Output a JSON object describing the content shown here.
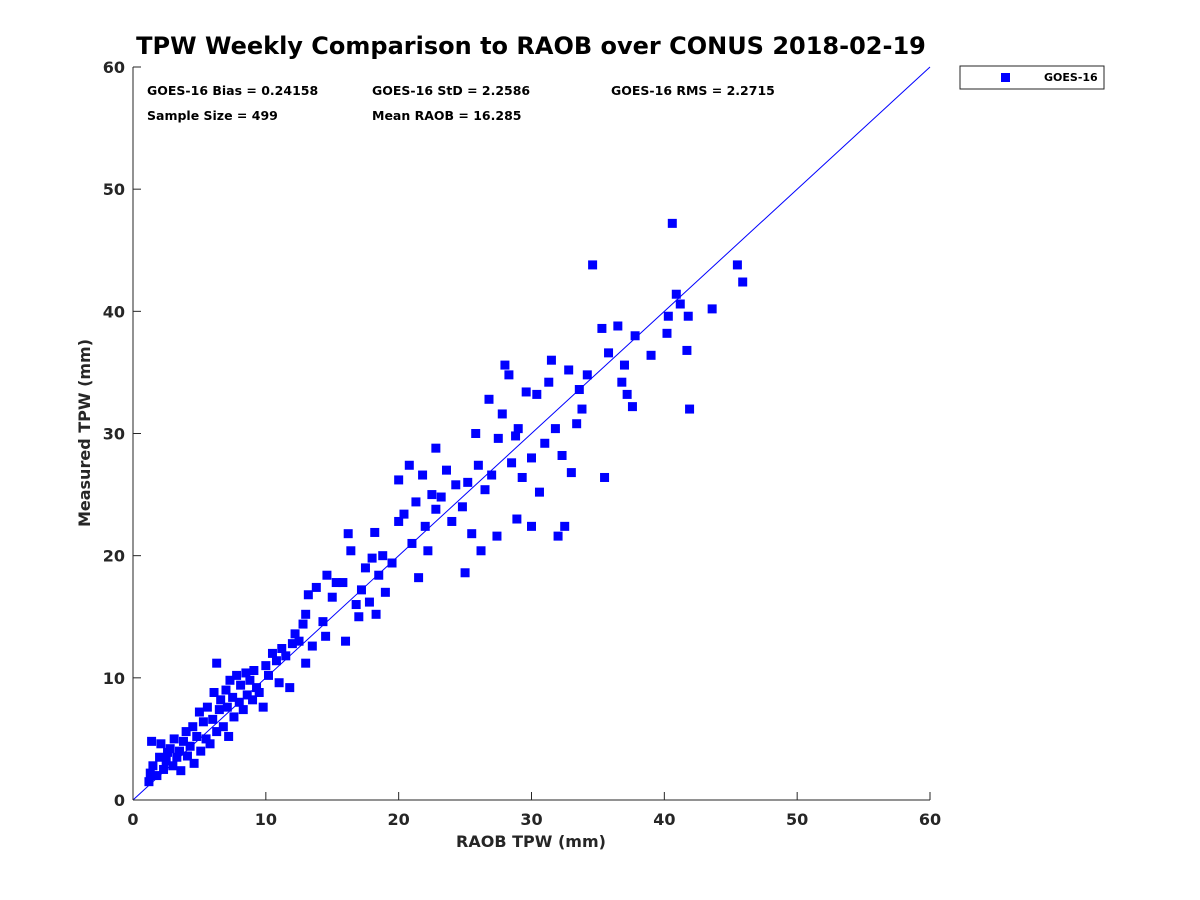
{
  "chart_data": {
    "type": "scatter",
    "title": "TPW Weekly Comparison to RAOB over CONUS 2018-02-19",
    "xlabel": "RAOB TPW (mm)",
    "ylabel": "Measured TPW (mm)",
    "xlim": [
      0,
      60
    ],
    "ylim": [
      0,
      60
    ],
    "xticks": [
      "0",
      "10",
      "20",
      "30",
      "40",
      "50",
      "60"
    ],
    "yticks": [
      "0",
      "10",
      "20",
      "30",
      "40",
      "50",
      "60"
    ],
    "grid": false,
    "legend_position": "outside top-right",
    "reference_line": {
      "name": "1:1 line",
      "from": [
        0,
        0
      ],
      "to": [
        60,
        60
      ],
      "color": "#0000ff"
    },
    "stats": [
      {
        "text": "GOES-16 Bias = 0.24158"
      },
      {
        "text": "GOES-16 StD = 2.2586"
      },
      {
        "text": "GOES-16 RMS = 2.2715"
      },
      {
        "text": "Sample Size = 499"
      },
      {
        "text": "Mean RAOB = 16.285"
      }
    ],
    "series": [
      {
        "name": "GOES-16",
        "color": "#0000ff",
        "marker": "square",
        "points": [
          [
            1.2,
            1.5
          ],
          [
            1.3,
            2.2
          ],
          [
            1.5,
            2.8
          ],
          [
            1.4,
            4.8
          ],
          [
            1.8,
            2.0
          ],
          [
            2.0,
            3.5
          ],
          [
            2.1,
            4.6
          ],
          [
            2.3,
            2.5
          ],
          [
            2.5,
            3.2
          ],
          [
            2.6,
            3.9
          ],
          [
            2.8,
            4.2
          ],
          [
            3.0,
            2.8
          ],
          [
            3.1,
            5.0
          ],
          [
            3.3,
            3.5
          ],
          [
            3.5,
            4.0
          ],
          [
            3.6,
            2.4
          ],
          [
            3.8,
            4.8
          ],
          [
            4.0,
            5.6
          ],
          [
            4.1,
            3.6
          ],
          [
            4.3,
            4.4
          ],
          [
            4.5,
            6.0
          ],
          [
            4.6,
            3.0
          ],
          [
            4.8,
            5.2
          ],
          [
            5.0,
            7.2
          ],
          [
            5.1,
            4.0
          ],
          [
            5.3,
            6.4
          ],
          [
            5.5,
            5.0
          ],
          [
            5.6,
            7.6
          ],
          [
            5.8,
            4.6
          ],
          [
            6.0,
            6.6
          ],
          [
            6.1,
            8.8
          ],
          [
            6.3,
            5.6
          ],
          [
            6.3,
            11.2
          ],
          [
            6.5,
            7.4
          ],
          [
            6.6,
            8.2
          ],
          [
            6.8,
            6.0
          ],
          [
            7.0,
            9.0
          ],
          [
            7.1,
            7.6
          ],
          [
            7.2,
            5.2
          ],
          [
            7.3,
            9.8
          ],
          [
            7.5,
            8.4
          ],
          [
            7.6,
            6.8
          ],
          [
            7.8,
            10.2
          ],
          [
            8.0,
            8.0
          ],
          [
            8.1,
            9.4
          ],
          [
            8.3,
            7.4
          ],
          [
            8.5,
            10.4
          ],
          [
            8.6,
            8.6
          ],
          [
            8.8,
            9.8
          ],
          [
            9.0,
            8.2
          ],
          [
            9.1,
            10.6
          ],
          [
            9.3,
            9.2
          ],
          [
            9.5,
            8.8
          ],
          [
            9.8,
            7.6
          ],
          [
            10.0,
            11.0
          ],
          [
            10.2,
            10.2
          ],
          [
            10.5,
            12.0
          ],
          [
            10.8,
            11.4
          ],
          [
            11.0,
            9.6
          ],
          [
            11.2,
            12.4
          ],
          [
            11.5,
            11.8
          ],
          [
            11.8,
            9.2
          ],
          [
            12.0,
            12.8
          ],
          [
            12.2,
            13.6
          ],
          [
            12.5,
            13.0
          ],
          [
            12.8,
            14.4
          ],
          [
            13.0,
            11.2
          ],
          [
            13.0,
            15.2
          ],
          [
            13.2,
            16.8
          ],
          [
            13.5,
            12.6
          ],
          [
            13.8,
            17.4
          ],
          [
            14.3,
            14.6
          ],
          [
            14.5,
            13.4
          ],
          [
            14.6,
            18.4
          ],
          [
            15.0,
            16.6
          ],
          [
            15.3,
            17.8
          ],
          [
            15.8,
            17.8
          ],
          [
            16.0,
            13.0
          ],
          [
            16.2,
            21.8
          ],
          [
            16.4,
            20.4
          ],
          [
            16.8,
            16.0
          ],
          [
            17.0,
            15.0
          ],
          [
            17.2,
            17.2
          ],
          [
            17.5,
            19.0
          ],
          [
            17.8,
            16.2
          ],
          [
            18.0,
            19.8
          ],
          [
            18.2,
            21.9
          ],
          [
            18.3,
            15.2
          ],
          [
            18.5,
            18.4
          ],
          [
            18.8,
            20.0
          ],
          [
            19.0,
            17.0
          ],
          [
            19.5,
            19.4
          ],
          [
            20.0,
            22.8
          ],
          [
            20.0,
            26.2
          ],
          [
            20.4,
            23.4
          ],
          [
            20.8,
            27.4
          ],
          [
            21.0,
            21.0
          ],
          [
            21.3,
            24.4
          ],
          [
            21.5,
            18.2
          ],
          [
            21.8,
            26.6
          ],
          [
            22.0,
            22.4
          ],
          [
            22.2,
            20.4
          ],
          [
            22.5,
            25.0
          ],
          [
            22.8,
            23.8
          ],
          [
            22.8,
            28.8
          ],
          [
            23.2,
            24.8
          ],
          [
            23.6,
            27.0
          ],
          [
            24.0,
            22.8
          ],
          [
            24.3,
            25.8
          ],
          [
            24.8,
            24.0
          ],
          [
            25.0,
            18.6
          ],
          [
            25.2,
            26.0
          ],
          [
            25.5,
            21.8
          ],
          [
            25.8,
            30.0
          ],
          [
            26.0,
            27.4
          ],
          [
            26.2,
            20.4
          ],
          [
            26.5,
            25.4
          ],
          [
            26.8,
            32.8
          ],
          [
            27.0,
            26.6
          ],
          [
            27.4,
            21.6
          ],
          [
            27.5,
            29.6
          ],
          [
            27.8,
            31.6
          ],
          [
            28.0,
            35.6
          ],
          [
            28.3,
            34.8
          ],
          [
            28.5,
            27.6
          ],
          [
            28.8,
            29.8
          ],
          [
            28.9,
            23.0
          ],
          [
            29.0,
            30.4
          ],
          [
            29.3,
            26.4
          ],
          [
            29.6,
            33.4
          ],
          [
            30.0,
            28.0
          ],
          [
            30.0,
            22.4
          ],
          [
            30.4,
            33.2
          ],
          [
            30.6,
            25.2
          ],
          [
            31.0,
            29.2
          ],
          [
            31.3,
            34.2
          ],
          [
            31.5,
            36.0
          ],
          [
            31.8,
            30.4
          ],
          [
            32.0,
            21.6
          ],
          [
            32.3,
            28.2
          ],
          [
            32.5,
            22.4
          ],
          [
            32.8,
            35.2
          ],
          [
            33.0,
            26.8
          ],
          [
            33.4,
            30.8
          ],
          [
            33.6,
            33.6
          ],
          [
            33.8,
            32.0
          ],
          [
            34.2,
            34.8
          ],
          [
            34.6,
            43.8
          ],
          [
            35.3,
            38.6
          ],
          [
            35.5,
            26.4
          ],
          [
            35.8,
            36.6
          ],
          [
            36.5,
            38.8
          ],
          [
            36.8,
            34.2
          ],
          [
            37.0,
            35.6
          ],
          [
            37.2,
            33.2
          ],
          [
            37.6,
            32.2
          ],
          [
            37.8,
            38.0
          ],
          [
            39.0,
            36.4
          ],
          [
            40.2,
            38.2
          ],
          [
            40.3,
            39.6
          ],
          [
            40.6,
            47.2
          ],
          [
            40.9,
            41.4
          ],
          [
            41.2,
            40.6
          ],
          [
            41.7,
            36.8
          ],
          [
            41.8,
            39.6
          ],
          [
            41.9,
            32.0
          ],
          [
            43.6,
            40.2
          ],
          [
            45.5,
            43.8
          ],
          [
            45.9,
            42.4
          ]
        ]
      }
    ]
  }
}
